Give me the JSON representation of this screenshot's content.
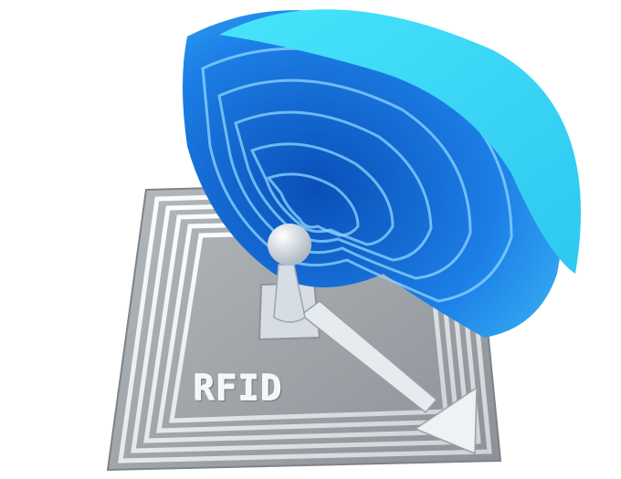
{
  "image": {
    "description_label": "RFID",
    "colors": {
      "background": "#ffffff",
      "tag_body": "#9aa0a5",
      "antenna_traces": "#eef1f3",
      "wave_dark": "#0b5fd1",
      "wave_light": "#4bd6f7",
      "node": "#e8edf2"
    },
    "icons": [
      "rfid-tag-icon",
      "radio-wave-icon"
    ]
  }
}
